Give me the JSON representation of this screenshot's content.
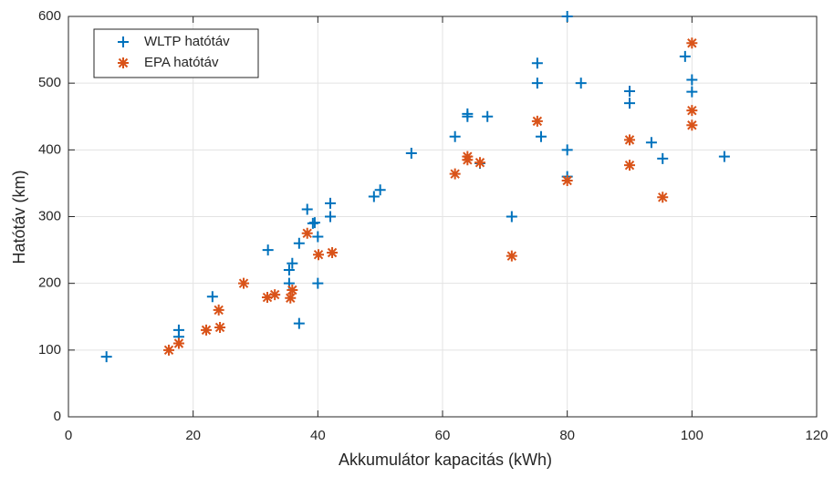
{
  "chart_data": {
    "type": "scatter",
    "xlabel": "Akkumulátor kapacitás (kWh)",
    "ylabel": "Hatótáv (km)",
    "xlim": [
      0,
      120
    ],
    "xticks": [
      0,
      20,
      40,
      60,
      80,
      100,
      120
    ],
    "ylim": [
      0,
      600
    ],
    "yticks": [
      0,
      100,
      200,
      300,
      400,
      500,
      600
    ],
    "grid": true,
    "legend": "top-left",
    "series": [
      {
        "name": "WLTP hatótáv",
        "color": "#0072BD",
        "marker": "plus",
        "x": [
          6.1,
          17.7,
          17.7,
          23.1,
          32,
          35.4,
          35.4,
          35.9,
          37,
          37,
          38.3,
          39.2,
          39.5,
          40,
          40,
          42,
          42,
          49,
          50,
          55,
          62,
          64,
          64,
          66,
          67.2,
          71.1,
          75.2,
          75.2,
          75.8,
          80,
          80,
          80,
          82.2,
          90,
          90,
          93.5,
          95.3,
          98.9,
          100,
          100,
          105.2
        ],
        "values": [
          90,
          130,
          120,
          180,
          250,
          200,
          220,
          230,
          140,
          260,
          311,
          290,
          291,
          270,
          200,
          320,
          300,
          330,
          340,
          395,
          420,
          454,
          450,
          380,
          450,
          300,
          530,
          500,
          420,
          600,
          400,
          360,
          500,
          488,
          470,
          411,
          387,
          540,
          505,
          487,
          390
        ]
      },
      {
        "name": "EPA hatótáv",
        "color": "#D95319",
        "marker": "asterisk",
        "x": [
          16.1,
          17.7,
          22.1,
          24.1,
          24.3,
          28.1,
          31.9,
          33.1,
          35.6,
          35.9,
          38.3,
          40.1,
          42.3,
          62,
          64,
          64,
          66,
          71.1,
          75.2,
          80,
          90,
          90,
          95.3,
          100,
          100,
          100
        ],
        "values": [
          100,
          110,
          130,
          160,
          134,
          200,
          179,
          183,
          178,
          190,
          275,
          243,
          246,
          364,
          390,
          385,
          381,
          241,
          443,
          354,
          415,
          377,
          329,
          560,
          459,
          437
        ]
      }
    ]
  }
}
